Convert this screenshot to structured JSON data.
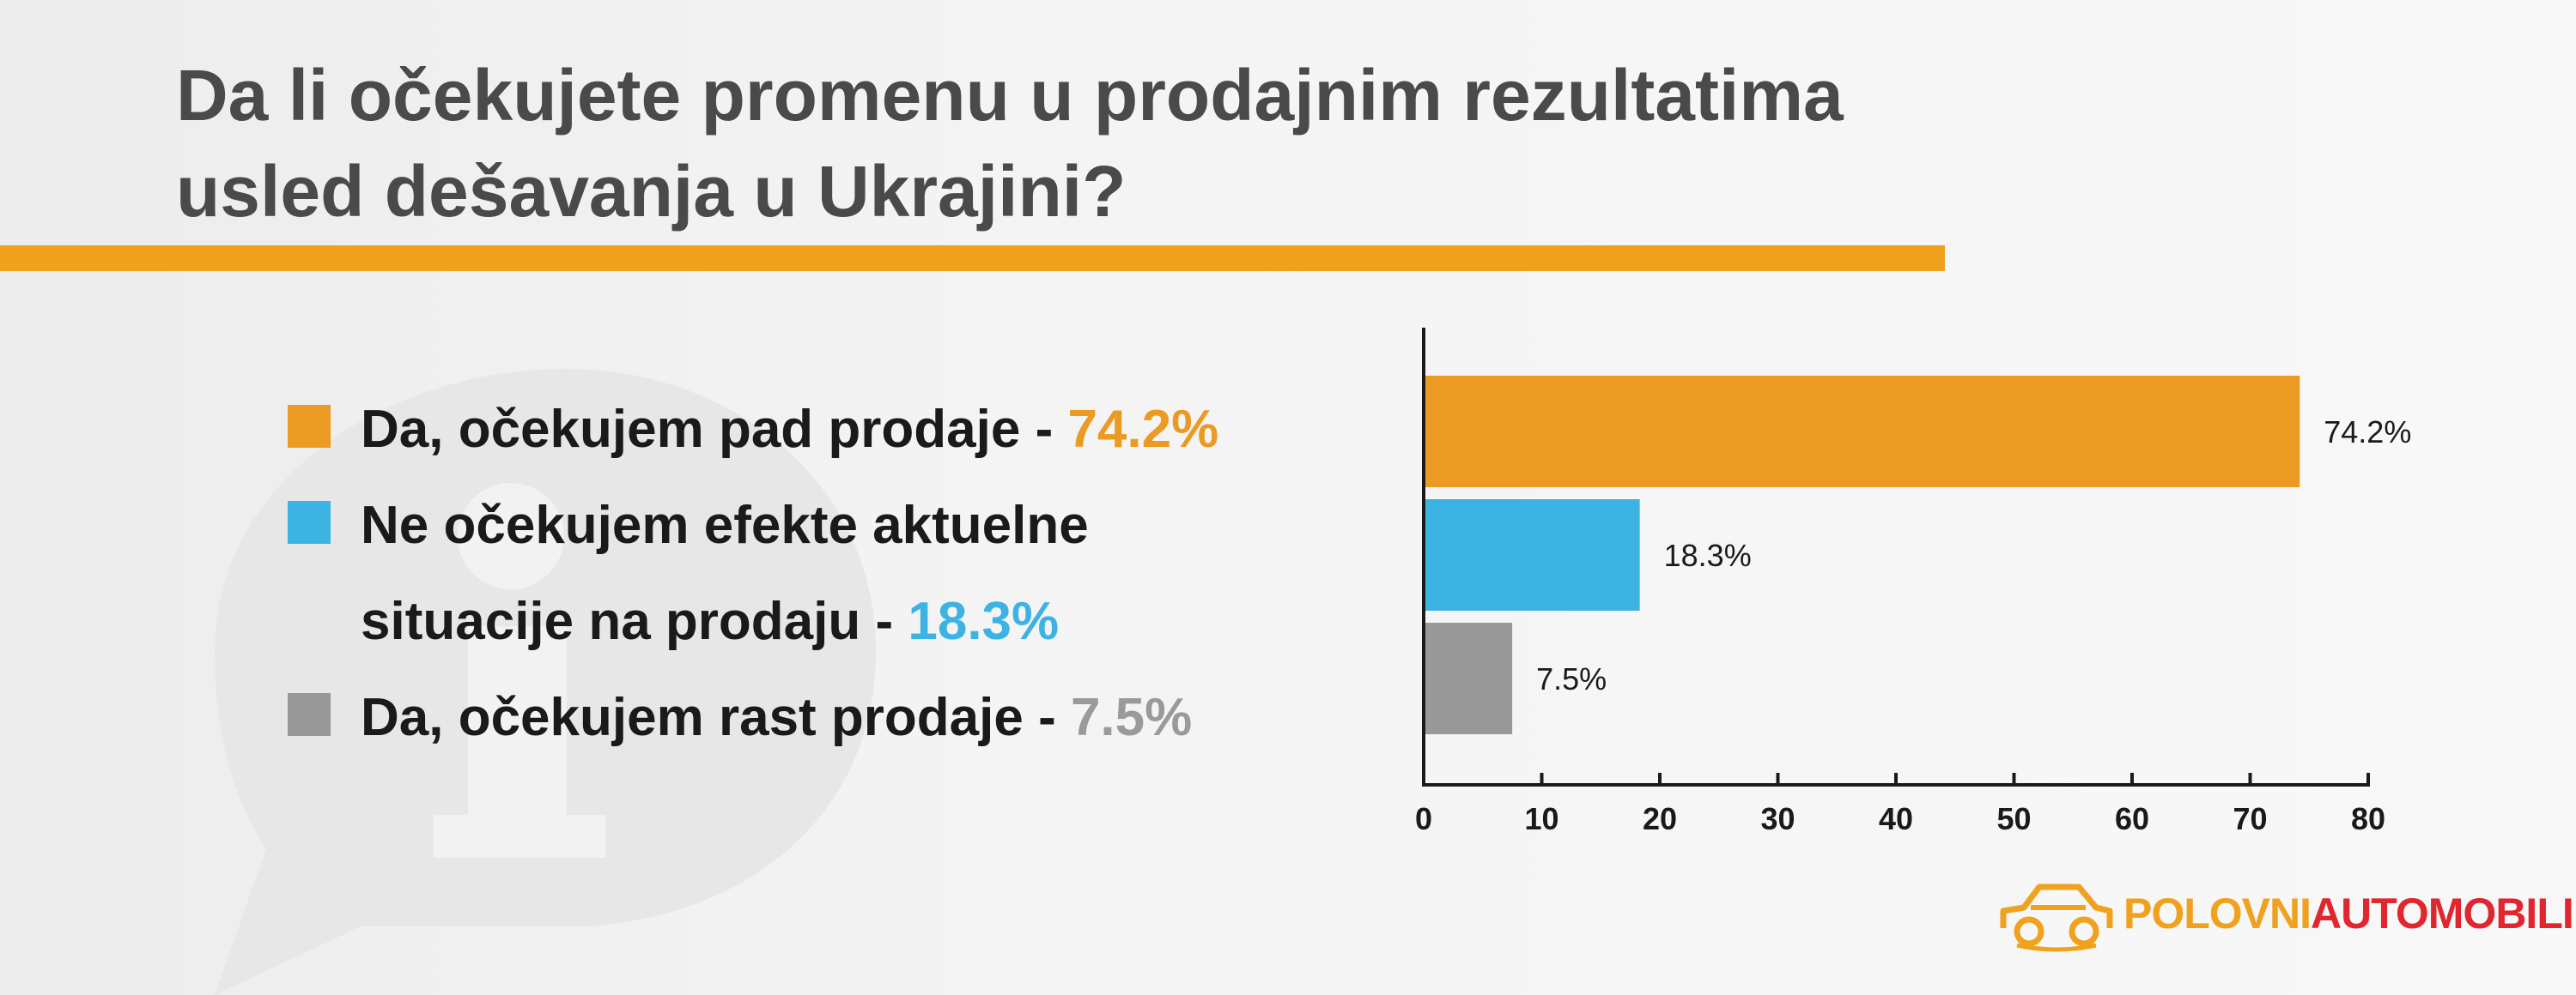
{
  "title": {
    "line1": "Da li očekujete promenu u prodajnim rezultatima",
    "line2": "usled dešavanja u Ukrajini?"
  },
  "legend": {
    "items": [
      {
        "line1": "Da, očekujem pad prodaje - ",
        "line2": "",
        "pct": "74.2%",
        "color": "#eb9a24",
        "text_color": "#eb9a24"
      },
      {
        "line1": "Ne očekujem efekte aktuelne",
        "line2": "situacije na prodaju - ",
        "pct": "18.3%",
        "color": "#3db3e3",
        "text_color": "#3db3e3"
      },
      {
        "line1": "Da, očekujem rast prodaje - ",
        "line2": "",
        "pct": "7.5%",
        "color": "#999999",
        "text_color": "#9a9a9a"
      }
    ]
  },
  "chart_data": {
    "type": "bar",
    "orientation": "horizontal",
    "categories": [
      "Da, očekujem pad prodaje",
      "Ne očekujem efekte aktuelne situacije na prodaju",
      "Da, očekujem rast prodaje"
    ],
    "values": [
      74.2,
      18.3,
      7.5
    ],
    "data_labels": [
      "74.2%",
      "18.3%",
      "7.5%"
    ],
    "colors": [
      "#eb9a24",
      "#3db3e3",
      "#999999"
    ],
    "xlim": [
      0,
      80
    ],
    "xticks": [
      0,
      10,
      20,
      30,
      40,
      50,
      60,
      70,
      80
    ],
    "grid": false,
    "legend": "left"
  },
  "logo": {
    "part1": "POLOVNI",
    "part2": "AUTOMOBILI",
    "color1": "#f0a21f",
    "color2": "#e0262e"
  },
  "icons": {
    "watermark": "info-bubble-icon",
    "logo": "car-outline-icon"
  }
}
